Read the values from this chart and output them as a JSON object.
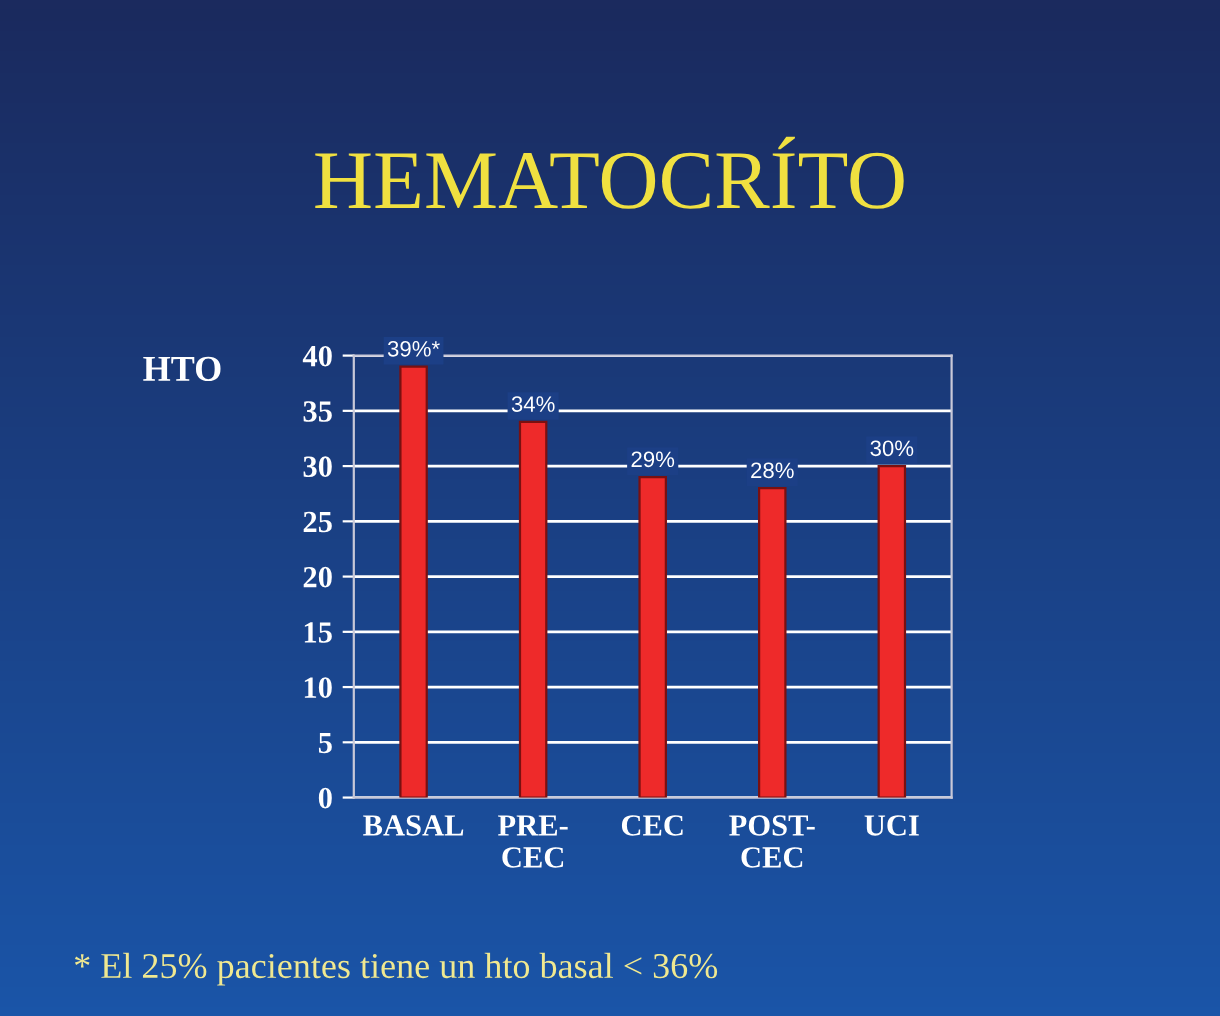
{
  "chart_data": {
    "type": "bar",
    "title": "HEMATOCRÍTO",
    "ylabel": "HTO",
    "categories": [
      "BASAL",
      "PRE-\nCEC",
      "CEC",
      "POST-\nCEC",
      "UCI"
    ],
    "values": [
      39,
      34,
      29,
      28,
      30
    ],
    "color": "#ee2a2a",
    "value_labels": [
      "39%*",
      "34%",
      "29%",
      "28%",
      "30%"
    ],
    "ylim": [
      0,
      40
    ],
    "yticks": [
      0,
      5,
      10,
      15,
      20,
      25,
      30,
      35,
      40
    ],
    "grid": "y",
    "annotations": [
      "* El 25% pacientes tiene un hto basal < 36%"
    ]
  }
}
